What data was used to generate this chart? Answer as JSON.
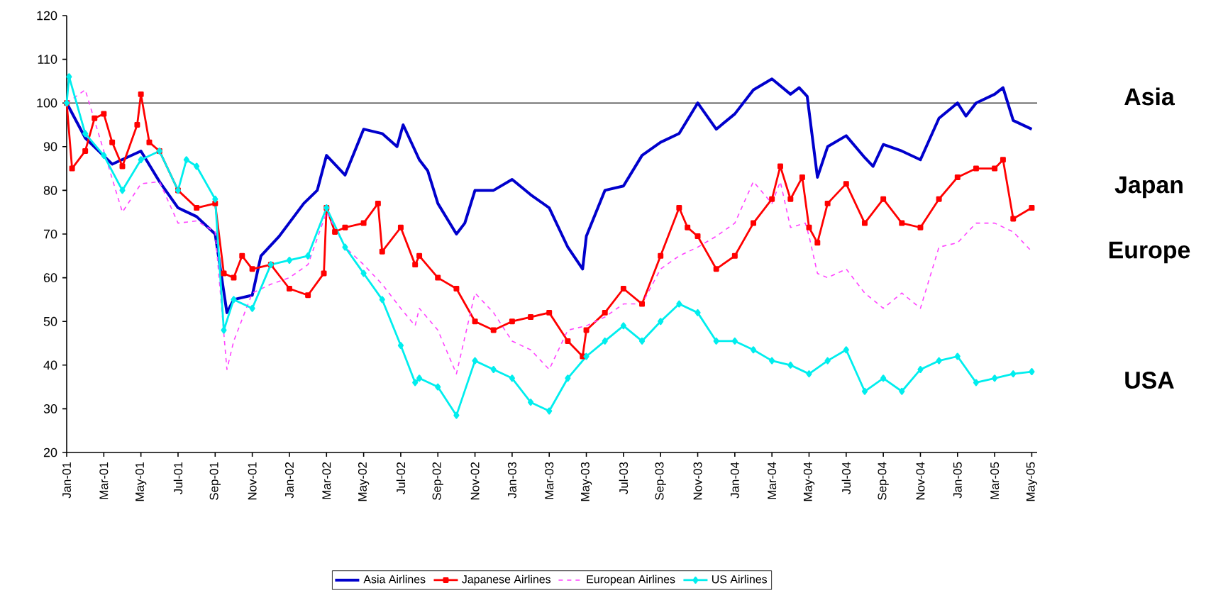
{
  "chart_data": {
    "type": "line",
    "ylim": [
      20,
      120
    ],
    "yticks": [
      20,
      30,
      40,
      50,
      60,
      70,
      80,
      90,
      100,
      110,
      120
    ],
    "xlim": [
      "2001-01-01",
      "2005-05-10"
    ],
    "xticks": [
      {
        "value": "2001-01",
        "label": "Jan-01"
      },
      {
        "value": "2001-03",
        "label": "Mar-01"
      },
      {
        "value": "2001-05",
        "label": "May-01"
      },
      {
        "value": "2001-07",
        "label": "Jul-01"
      },
      {
        "value": "2001-09",
        "label": "Sep-01"
      },
      {
        "value": "2001-11",
        "label": "Nov-01"
      },
      {
        "value": "2002-01",
        "label": "Jan-02"
      },
      {
        "value": "2002-03",
        "label": "Mar-02"
      },
      {
        "value": "2002-05",
        "label": "May-02"
      },
      {
        "value": "2002-07",
        "label": "Jul-02"
      },
      {
        "value": "2002-09",
        "label": "Sep-02"
      },
      {
        "value": "2002-11",
        "label": "Nov-02"
      },
      {
        "value": "2003-01",
        "label": "Jan-03"
      },
      {
        "value": "2003-03",
        "label": "Mar-03"
      },
      {
        "value": "2003-05",
        "label": "May-03"
      },
      {
        "value": "2003-07",
        "label": "Jul-03"
      },
      {
        "value": "2003-09",
        "label": "Sep-03"
      },
      {
        "value": "2003-11",
        "label": "Nov-03"
      },
      {
        "value": "2004-01",
        "label": "Jan-04"
      },
      {
        "value": "2004-03",
        "label": "Mar-04"
      },
      {
        "value": "2004-05",
        "label": "May-04"
      },
      {
        "value": "2004-07",
        "label": "Jul-04"
      },
      {
        "value": "2004-09",
        "label": "Sep-04"
      },
      {
        "value": "2004-11",
        "label": "Nov-04"
      },
      {
        "value": "2005-01",
        "label": "Jan-05"
      },
      {
        "value": "2005-03",
        "label": "Mar-05"
      },
      {
        "value": "2005-05",
        "label": "May-05"
      }
    ],
    "grid": false,
    "legend": "bottom",
    "ref_lines": [
      {
        "axis": "y",
        "value": 100,
        "color": "#404040"
      }
    ],
    "annotations": [
      "Asia",
      "Japan",
      "Europe",
      "USA"
    ],
    "series": [
      {
        "name": "Asia Airlines",
        "color": "#0000cc",
        "marker": "none",
        "line_style": "solid",
        "x": [
          "2001-01-01",
          "2001-02-01",
          "2001-03-15",
          "2001-05-01",
          "2001-06-01",
          "2001-07-01",
          "2001-08-01",
          "2001-09-01",
          "2001-09-20",
          "2001-10-01",
          "2001-11-01",
          "2001-11-15",
          "2001-12-15",
          "2002-01-25",
          "2002-02-15",
          "2002-03-01",
          "2002-04-01",
          "2002-05-01",
          "2002-06-01",
          "2002-06-25",
          "2002-07-05",
          "2002-08-01",
          "2002-08-15",
          "2002-09-01",
          "2002-10-01",
          "2002-10-15",
          "2002-11-01",
          "2002-12-01",
          "2003-01-01",
          "2003-02-01",
          "2003-03-01",
          "2003-04-01",
          "2003-04-25",
          "2003-05-01",
          "2003-06-01",
          "2003-07-01",
          "2003-08-01",
          "2003-09-01",
          "2003-10-01",
          "2003-11-01",
          "2003-12-01",
          "2004-01-01",
          "2004-02-01",
          "2004-03-01",
          "2004-04-01",
          "2004-04-15",
          "2004-04-28",
          "2004-05-15",
          "2004-06-01",
          "2004-07-01",
          "2004-08-01",
          "2004-08-15",
          "2004-09-01",
          "2004-10-01",
          "2004-11-01",
          "2004-12-01",
          "2005-01-01",
          "2005-01-15",
          "2005-02-01",
          "2005-03-01",
          "2005-03-15",
          "2005-04-01",
          "2005-05-01"
        ],
        "values": [
          100,
          92,
          86,
          89,
          82,
          76,
          74,
          70,
          52,
          55,
          56,
          65,
          69.5,
          77,
          80,
          88,
          83.5,
          94,
          93,
          90,
          95,
          87,
          84.5,
          77,
          70,
          72.5,
          80,
          80,
          82.5,
          79,
          76,
          67,
          62,
          69.5,
          80,
          81,
          88,
          91,
          93,
          100,
          94,
          97.5,
          103,
          105.5,
          102,
          103.5,
          101.5,
          83,
          90,
          92.5,
          87.5,
          85.5,
          90.5,
          89,
          87,
          96.5,
          100,
          97,
          100,
          102,
          103.5,
          96,
          94
        ]
      },
      {
        "name": "Japanese Airlines",
        "color": "#ff0000",
        "marker": "square",
        "line_style": "solid",
        "x": [
          "2001-01-01",
          "2001-01-10",
          "2001-02-01",
          "2001-02-15",
          "2001-03-01",
          "2001-03-15",
          "2001-04-01",
          "2001-04-25",
          "2001-05-01",
          "2001-05-15",
          "2001-06-01",
          "2001-07-01",
          "2001-08-01",
          "2001-09-01",
          "2001-09-15",
          "2001-10-01",
          "2001-10-15",
          "2001-11-01",
          "2001-12-01",
          "2002-01-01",
          "2002-02-01",
          "2002-02-25",
          "2002-03-01",
          "2002-03-15",
          "2002-04-01",
          "2002-05-01",
          "2002-05-25",
          "2002-06-01",
          "2002-07-01",
          "2002-07-25",
          "2002-08-01",
          "2002-09-01",
          "2002-10-01",
          "2002-11-01",
          "2002-12-01",
          "2003-01-01",
          "2003-02-01",
          "2003-03-01",
          "2003-04-01",
          "2003-04-25",
          "2003-05-01",
          "2003-06-01",
          "2003-07-01",
          "2003-08-01",
          "2003-09-01",
          "2003-10-01",
          "2003-10-15",
          "2003-11-01",
          "2003-12-01",
          "2004-01-01",
          "2004-02-01",
          "2004-03-01",
          "2004-03-15",
          "2004-04-01",
          "2004-04-20",
          "2004-05-01",
          "2004-05-15",
          "2004-06-01",
          "2004-07-01",
          "2004-08-01",
          "2004-09-01",
          "2004-10-01",
          "2004-11-01",
          "2004-12-01",
          "2005-01-01",
          "2005-02-01",
          "2005-03-01",
          "2005-03-15",
          "2005-04-01",
          "2005-05-01"
        ],
        "values": [
          100,
          85,
          89,
          96.5,
          97.5,
          91,
          85.5,
          95,
          102,
          91,
          89,
          80,
          76,
          77,
          61,
          60,
          65,
          62,
          63,
          57.5,
          56,
          61,
          76,
          70.5,
          71.5,
          72.5,
          77,
          66,
          71.5,
          63,
          65,
          60,
          57.5,
          50,
          48,
          50,
          51,
          52,
          45.5,
          42,
          48,
          52,
          57.5,
          54,
          65,
          76,
          71.5,
          69.5,
          62,
          65,
          72.5,
          78,
          85.5,
          78,
          83,
          71.5,
          68,
          77,
          81.5,
          72.5,
          78,
          72.5,
          71.5,
          78,
          83,
          85,
          85,
          87,
          73.5,
          76
        ]
      },
      {
        "name": "European Airlines",
        "color": "#ff44ff",
        "marker": "none",
        "line_style": "dashed",
        "x": [
          "2001-01-01",
          "2001-02-01",
          "2001-03-01",
          "2001-04-01",
          "2001-05-01",
          "2001-06-01",
          "2001-07-01",
          "2001-08-01",
          "2001-09-01",
          "2001-09-20",
          "2001-10-01",
          "2001-11-01",
          "2001-12-01",
          "2002-01-01",
          "2002-02-01",
          "2002-03-01",
          "2002-04-01",
          "2002-05-01",
          "2002-06-01",
          "2002-07-01",
          "2002-07-25",
          "2002-08-01",
          "2002-09-01",
          "2002-10-01",
          "2002-11-01",
          "2002-12-01",
          "2003-01-01",
          "2003-02-01",
          "2003-03-01",
          "2003-04-01",
          "2003-05-01",
          "2003-06-01",
          "2003-07-01",
          "2003-08-01",
          "2003-09-01",
          "2003-10-01",
          "2003-11-01",
          "2003-12-01",
          "2004-01-01",
          "2004-02-01",
          "2004-03-01",
          "2004-03-15",
          "2004-04-01",
          "2004-04-25",
          "2004-05-01",
          "2004-05-15",
          "2004-06-01",
          "2004-07-01",
          "2004-08-01",
          "2004-09-01",
          "2004-10-01",
          "2004-11-01",
          "2004-12-01",
          "2005-01-01",
          "2005-02-01",
          "2005-03-01",
          "2005-04-01",
          "2005-05-01"
        ],
        "values": [
          100,
          103,
          89,
          75,
          81.5,
          82,
          72.5,
          73,
          70.5,
          39,
          45.5,
          56.5,
          58.5,
          60,
          63,
          75,
          67,
          63,
          58.5,
          53,
          49,
          53,
          48,
          38,
          56.5,
          52,
          45.5,
          43.5,
          39,
          48,
          49,
          51,
          54,
          54,
          62,
          65,
          67,
          69.5,
          72.5,
          82,
          77,
          82,
          71.5,
          72.5,
          69.5,
          61,
          60,
          62,
          56.5,
          53,
          56.5,
          53,
          67,
          68,
          72.5,
          72.5,
          70.5,
          66
        ]
      },
      {
        "name": "US Airlines",
        "color": "#00eeee",
        "marker": "diamond",
        "line_style": "solid",
        "x": [
          "2001-01-01",
          "2001-01-05",
          "2001-02-01",
          "2001-03-01",
          "2001-04-01",
          "2001-05-01",
          "2001-06-01",
          "2001-07-01",
          "2001-07-15",
          "2001-08-01",
          "2001-09-01",
          "2001-09-15",
          "2001-10-01",
          "2001-11-01",
          "2001-12-01",
          "2002-01-01",
          "2002-02-01",
          "2002-03-01",
          "2002-04-01",
          "2002-05-01",
          "2002-06-01",
          "2002-07-01",
          "2002-07-25",
          "2002-08-01",
          "2002-09-01",
          "2002-10-01",
          "2002-11-01",
          "2002-12-01",
          "2003-01-01",
          "2003-02-01",
          "2003-03-01",
          "2003-04-01",
          "2003-05-01",
          "2003-06-01",
          "2003-07-01",
          "2003-08-01",
          "2003-09-01",
          "2003-10-01",
          "2003-11-01",
          "2003-12-01",
          "2004-01-01",
          "2004-02-01",
          "2004-03-01",
          "2004-04-01",
          "2004-05-01",
          "2004-06-01",
          "2004-07-01",
          "2004-08-01",
          "2004-09-01",
          "2004-10-01",
          "2004-11-01",
          "2004-12-01",
          "2005-01-01",
          "2005-02-01",
          "2005-03-01",
          "2005-04-01",
          "2005-05-01"
        ],
        "values": [
          100,
          106,
          93,
          88,
          80,
          87,
          89,
          80,
          87,
          85.5,
          78,
          48,
          55,
          53,
          63,
          64,
          65,
          76,
          67,
          61,
          55,
          44.5,
          36,
          37,
          35,
          28.5,
          41,
          39,
          37,
          31.5,
          29.5,
          37,
          42,
          45.5,
          49,
          45.5,
          50,
          54,
          52,
          45.5,
          45.5,
          43.5,
          41,
          40,
          38,
          41,
          43.5,
          34,
          37,
          34,
          39,
          41,
          42,
          36,
          37,
          38,
          38.5
        ]
      }
    ]
  }
}
